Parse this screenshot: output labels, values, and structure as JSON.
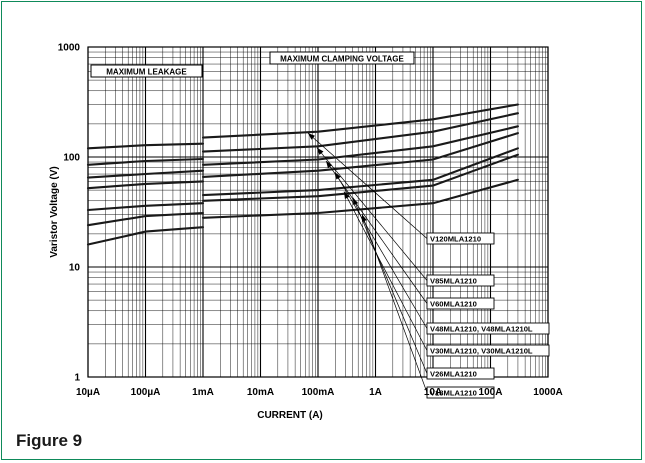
{
  "figure_caption": "Figure 9",
  "chart_data": {
    "type": "line",
    "xlabel": "CURRENT (A)",
    "ylabel": "Varistor Voltage (V)",
    "x_scale": "log",
    "y_scale": "log",
    "xlim": [
      "10µA",
      "1000A"
    ],
    "ylim": [
      1,
      1000
    ],
    "x_ticks": [
      "10µA",
      "100µA",
      "1mA",
      "10mA",
      "100mA",
      "1A",
      "10A",
      "100A",
      "1000A"
    ],
    "y_ticks": [
      "1",
      "10",
      "100",
      "1000"
    ],
    "grid": true,
    "region_labels": {
      "leakage": "MAXIMUM LEAKAGE",
      "clamping": "MAXIMUM CLAMPING VOLTAGE"
    },
    "series": [
      {
        "name": "V120MLA1210",
        "leakage": [
          [
            "10µA",
            120
          ],
          [
            "100µA",
            128
          ],
          [
            "1mA",
            132
          ]
        ],
        "clamping": [
          [
            "1mA",
            150
          ],
          [
            "100mA",
            170
          ],
          [
            "10A",
            220
          ],
          [
            "300A",
            300
          ]
        ]
      },
      {
        "name": "V85MLA1210",
        "leakage": [
          [
            "10µA",
            85
          ],
          [
            "100µA",
            92
          ],
          [
            "1mA",
            96
          ]
        ],
        "clamping": [
          [
            "1mA",
            112
          ],
          [
            "100mA",
            125
          ],
          [
            "10A",
            170
          ],
          [
            "300A",
            250
          ]
        ]
      },
      {
        "name": "V60MLA1210",
        "leakage": [
          [
            "10µA",
            65
          ],
          [
            "100µA",
            70
          ],
          [
            "1mA",
            75
          ]
        ],
        "clamping": [
          [
            "1mA",
            85
          ],
          [
            "100mA",
            95
          ],
          [
            "10A",
            125
          ],
          [
            "300A",
            190
          ]
        ]
      },
      {
        "name": "V48MLA1210, V48MLA1210L",
        "leakage": [
          [
            "10µA",
            52
          ],
          [
            "100µA",
            57
          ],
          [
            "1mA",
            60
          ]
        ],
        "clamping": [
          [
            "1mA",
            66
          ],
          [
            "100mA",
            75
          ],
          [
            "10A",
            95
          ],
          [
            "300A",
            165
          ]
        ]
      },
      {
        "name": "V30MLA1210, V30MLA1210L",
        "leakage": [
          [
            "10µA",
            33
          ],
          [
            "100µA",
            36
          ],
          [
            "1mA",
            38
          ]
        ],
        "clamping": [
          [
            "1mA",
            45
          ],
          [
            "100mA",
            50
          ],
          [
            "10A",
            62
          ],
          [
            "300A",
            120
          ]
        ]
      },
      {
        "name": "V26MLA1210",
        "leakage": [
          [
            "10µA",
            24
          ],
          [
            "100µA",
            29
          ],
          [
            "1mA",
            31
          ]
        ],
        "clamping": [
          [
            "1mA",
            40
          ],
          [
            "100mA",
            44
          ],
          [
            "10A",
            55
          ],
          [
            "300A",
            105
          ]
        ]
      },
      {
        "name": "V18MLA1210",
        "leakage": [
          [
            "10µA",
            16
          ],
          [
            "100µA",
            21
          ],
          [
            "1mA",
            23
          ]
        ],
        "clamping": [
          [
            "1mA",
            28
          ],
          [
            "100mA",
            31
          ],
          [
            "10A",
            38
          ],
          [
            "300A",
            62
          ]
        ]
      }
    ]
  }
}
